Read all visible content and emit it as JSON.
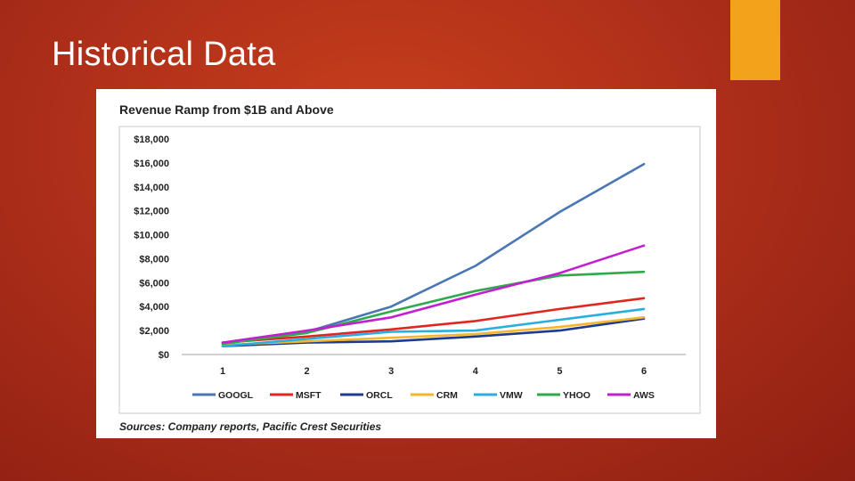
{
  "slide": {
    "title": "Historical Data",
    "accent_color": "#f2a31b"
  },
  "chart_data": {
    "type": "line",
    "title": "Revenue Ramp from $1B and Above",
    "source": "Sources: Company reports, Pacific Crest Securities",
    "xlabel": "",
    "ylabel": "",
    "x": [
      1,
      2,
      3,
      4,
      5,
      6
    ],
    "x_tick_labels": [
      "1",
      "2",
      "3",
      "4",
      "5",
      "6"
    ],
    "ylim": [
      0,
      18000
    ],
    "y_ticks": [
      0,
      2000,
      4000,
      6000,
      8000,
      10000,
      12000,
      14000,
      16000,
      18000
    ],
    "y_tick_labels": [
      "$0",
      "$2,000",
      "$4,000",
      "$6,000",
      "$8,000",
      "$10,000",
      "$12,000",
      "$14,000",
      "$16,000",
      "$18,000"
    ],
    "grid": "horizontal",
    "legend_position": "bottom",
    "series": [
      {
        "name": "GOOGL",
        "color": "#4a77b4",
        "values": [
          900,
          1900,
          4000,
          7400,
          11900,
          15900
        ]
      },
      {
        "name": "MSFT",
        "color": "#e0261f",
        "values": [
          1000,
          1500,
          2100,
          2800,
          3800,
          4700
        ]
      },
      {
        "name": "ORCL",
        "color": "#1f3b8f",
        "values": [
          700,
          1000,
          1100,
          1500,
          2000,
          3000
        ]
      },
      {
        "name": "CRM",
        "color": "#f5b62a",
        "values": [
          800,
          1100,
          1400,
          1700,
          2300,
          3100
        ]
      },
      {
        "name": "VMW",
        "color": "#2aaee0",
        "values": [
          700,
          1300,
          1900,
          2000,
          2900,
          3800
        ]
      },
      {
        "name": "YHOO",
        "color": "#2faa4a",
        "values": [
          900,
          1800,
          3600,
          5300,
          6600,
          6900
        ]
      },
      {
        "name": "AWS",
        "color": "#c21fd0",
        "values": [
          1000,
          2000,
          3100,
          5000,
          6800,
          9100
        ]
      }
    ]
  }
}
